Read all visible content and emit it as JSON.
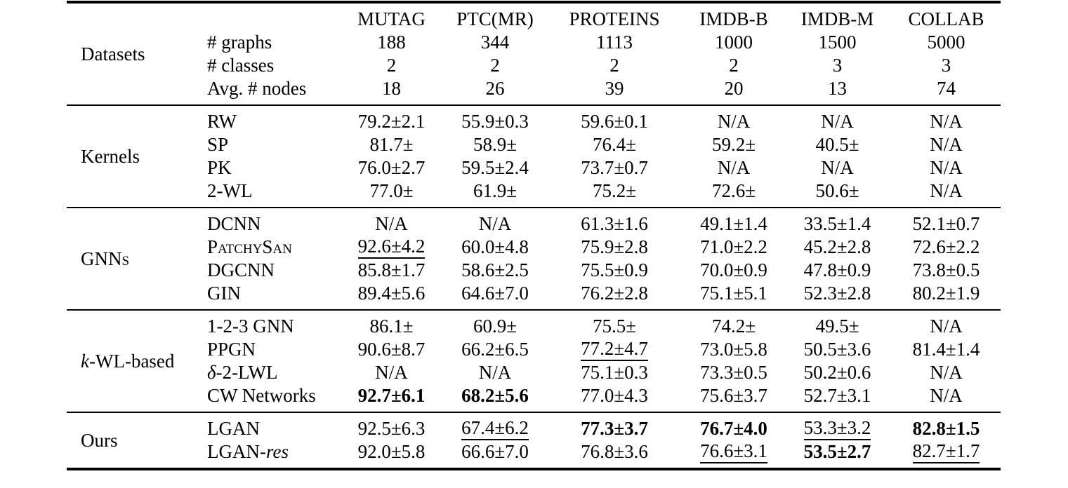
{
  "page": {
    "background": "#ffffff",
    "text_color": "#000000"
  },
  "table": {
    "columns": [
      "MUTAG",
      "PTC(MR)",
      "PROTEINS",
      "IMDB-B",
      "IMDB-M",
      "COLLAB"
    ],
    "sections": [
      {
        "label": {
          "text": "Datasets"
        },
        "has_column_header": true,
        "rows": [
          {
            "name": {
              "text": "# graphs"
            },
            "cells": [
              {
                "text": "188"
              },
              {
                "text": "344"
              },
              {
                "text": "1113"
              },
              {
                "text": "1000"
              },
              {
                "text": "1500"
              },
              {
                "text": "5000"
              }
            ]
          },
          {
            "name": {
              "text": "# classes"
            },
            "cells": [
              {
                "text": "2"
              },
              {
                "text": "2"
              },
              {
                "text": "2"
              },
              {
                "text": "2"
              },
              {
                "text": "3"
              },
              {
                "text": "3"
              }
            ]
          },
          {
            "name": {
              "text": "Avg. # nodes"
            },
            "cells": [
              {
                "text": "18"
              },
              {
                "text": "26"
              },
              {
                "text": "39"
              },
              {
                "text": "20"
              },
              {
                "text": "13"
              },
              {
                "text": "74"
              }
            ]
          }
        ]
      },
      {
        "label": {
          "text": "Kernels"
        },
        "rows": [
          {
            "name": {
              "text": "RW"
            },
            "cells": [
              {
                "text": "79.2±2.1"
              },
              {
                "text": "55.9±0.3"
              },
              {
                "text": "59.6±0.1"
              },
              {
                "text": "N/A"
              },
              {
                "text": "N/A"
              },
              {
                "text": "N/A"
              }
            ]
          },
          {
            "name": {
              "text": "SP"
            },
            "cells": [
              {
                "text": "81.7±"
              },
              {
                "text": "58.9±"
              },
              {
                "text": "76.4±"
              },
              {
                "text": "59.2±"
              },
              {
                "text": "40.5±"
              },
              {
                "text": "N/A"
              }
            ]
          },
          {
            "name": {
              "text": "PK"
            },
            "cells": [
              {
                "text": "76.0±2.7"
              },
              {
                "text": "59.5±2.4"
              },
              {
                "text": "73.7±0.7"
              },
              {
                "text": "N/A"
              },
              {
                "text": "N/A"
              },
              {
                "text": "N/A"
              }
            ]
          },
          {
            "name": {
              "text": "2-WL"
            },
            "cells": [
              {
                "text": "77.0±"
              },
              {
                "text": "61.9±"
              },
              {
                "text": "75.2±"
              },
              {
                "text": "72.6±"
              },
              {
                "text": "50.6±"
              },
              {
                "text": "N/A"
              }
            ]
          }
        ]
      },
      {
        "label": {
          "text": "GNNs",
          "smallcaps": true
        },
        "rows": [
          {
            "name": {
              "text": "DCNN"
            },
            "cells": [
              {
                "text": "N/A"
              },
              {
                "text": "N/A"
              },
              {
                "text": "61.3±1.6"
              },
              {
                "text": "49.1±1.4"
              },
              {
                "text": "33.5±1.4"
              },
              {
                "text": "52.1±0.7"
              }
            ]
          },
          {
            "name": {
              "text": "PatchySan",
              "smallcaps": true
            },
            "cells": [
              {
                "text": "92.6±4.2",
                "underline": true
              },
              {
                "text": "60.0±4.8"
              },
              {
                "text": "75.9±2.8"
              },
              {
                "text": "71.0±2.2"
              },
              {
                "text": "45.2±2.8"
              },
              {
                "text": "72.6±2.2"
              }
            ]
          },
          {
            "name": {
              "text": "DGCNN"
            },
            "cells": [
              {
                "text": "85.8±1.7"
              },
              {
                "text": "58.6±2.5"
              },
              {
                "text": "75.5±0.9"
              },
              {
                "text": "70.0±0.9"
              },
              {
                "text": "47.8±0.9"
              },
              {
                "text": "73.8±0.5"
              }
            ]
          },
          {
            "name": {
              "text": "GIN"
            },
            "cells": [
              {
                "text": "89.4±5.6"
              },
              {
                "text": "64.6±7.0"
              },
              {
                "text": "76.2±2.8"
              },
              {
                "text": "75.1±5.1"
              },
              {
                "text": "52.3±2.8"
              },
              {
                "text": "80.2±1.9"
              }
            ]
          }
        ]
      },
      {
        "label": {
          "parts": [
            {
              "text": "k",
              "italic": true
            },
            {
              "text": "-WL-based"
            }
          ]
        },
        "rows": [
          {
            "name": {
              "text": "1-2-3 GNN"
            },
            "cells": [
              {
                "text": "86.1±"
              },
              {
                "text": "60.9±"
              },
              {
                "text": "75.5±"
              },
              {
                "text": "74.2±"
              },
              {
                "text": "49.5±"
              },
              {
                "text": "N/A"
              }
            ]
          },
          {
            "name": {
              "text": "PPGN"
            },
            "cells": [
              {
                "text": "90.6±8.7"
              },
              {
                "text": "66.2±6.5"
              },
              {
                "text": "77.2±4.7",
                "underline": true
              },
              {
                "text": "73.0±5.8"
              },
              {
                "text": "50.5±3.6"
              },
              {
                "text": "81.4±1.4"
              }
            ]
          },
          {
            "name": {
              "parts": [
                {
                  "text": "δ",
                  "italic": true
                },
                {
                  "text": "-2-LWL"
                }
              ]
            },
            "cells": [
              {
                "text": "N/A"
              },
              {
                "text": "N/A"
              },
              {
                "text": "75.1±0.3"
              },
              {
                "text": "73.3±0.5"
              },
              {
                "text": "50.2±0.6"
              },
              {
                "text": "N/A"
              }
            ]
          },
          {
            "name": {
              "text": "CW Networks"
            },
            "cells": [
              {
                "text": "92.7±6.1",
                "bold": true
              },
              {
                "text": "68.2±5.6",
                "bold": true
              },
              {
                "text": "77.0±4.3"
              },
              {
                "text": "75.6±3.7"
              },
              {
                "text": "52.7±3.1"
              },
              {
                "text": "N/A"
              }
            ]
          }
        ]
      },
      {
        "label": {
          "text": "Ours"
        },
        "rows": [
          {
            "name": {
              "text": "LGAN"
            },
            "cells": [
              {
                "text": "92.5±6.3"
              },
              {
                "text": "67.4±6.2",
                "underline": true
              },
              {
                "text": "77.3±3.7",
                "bold": true
              },
              {
                "text": "76.7±4.0",
                "bold": true
              },
              {
                "text": "53.3±3.2",
                "underline": true
              },
              {
                "text": "82.8±1.5",
                "bold": true
              }
            ]
          },
          {
            "name": {
              "parts": [
                {
                  "text": "LGAN-"
                },
                {
                  "text": "res",
                  "italic": true
                }
              ]
            },
            "cells": [
              {
                "text": "92.0±5.8"
              },
              {
                "text": "66.6±7.0"
              },
              {
                "text": "76.8±3.6"
              },
              {
                "text": "76.6±3.1",
                "underline": true
              },
              {
                "text": "53.5±2.7",
                "bold": true
              },
              {
                "text": "82.7±1.7",
                "underline": true
              }
            ]
          }
        ]
      }
    ]
  }
}
